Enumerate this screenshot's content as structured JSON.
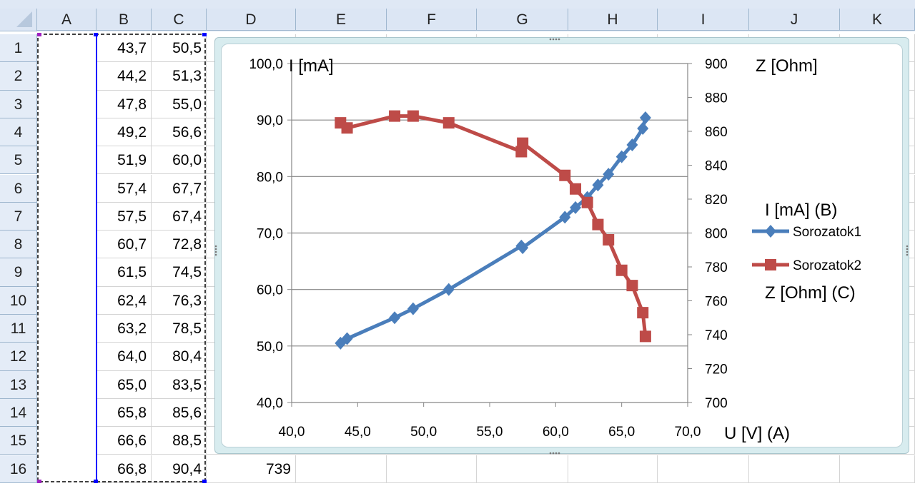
{
  "columns": [
    "A",
    "B",
    "C",
    "D",
    "E",
    "F",
    "G",
    "H",
    "I",
    "J",
    "K"
  ],
  "rows": [
    {
      "n": "1",
      "A": "43,7",
      "B": "50,5",
      "C": "865"
    },
    {
      "n": "2",
      "A": "44,2",
      "B": "51,3",
      "C": "862"
    },
    {
      "n": "3",
      "A": "47,8",
      "B": "55,0",
      "C": "869"
    },
    {
      "n": "4",
      "A": "49,2",
      "B": "56,6",
      "C": "869"
    },
    {
      "n": "5",
      "A": "51,9",
      "B": "60,0",
      "C": "865"
    },
    {
      "n": "6",
      "A": "57,4",
      "B": "67,7",
      "C": "848"
    },
    {
      "n": "7",
      "A": "57,5",
      "B": "67,4",
      "C": "853"
    },
    {
      "n": "8",
      "A": "60,7",
      "B": "72,8",
      "C": "834"
    },
    {
      "n": "9",
      "A": "61,5",
      "B": "74,5",
      "C": "826"
    },
    {
      "n": "10",
      "A": "62,4",
      "B": "76,3",
      "C": "818"
    },
    {
      "n": "11",
      "A": "63,2",
      "B": "78,5",
      "C": "805"
    },
    {
      "n": "12",
      "A": "64,0",
      "B": "80,4",
      "C": "796"
    },
    {
      "n": "13",
      "A": "65,0",
      "B": "83,5",
      "C": "778"
    },
    {
      "n": "14",
      "A": "65,8",
      "B": "85,6",
      "C": "769"
    },
    {
      "n": "15",
      "A": "66,6",
      "B": "88,5",
      "C": "753"
    },
    {
      "n": "16",
      "A": "66,8",
      "B": "90,4",
      "C": "739"
    }
  ],
  "chart_data": {
    "type": "line",
    "xlabel": "U [V] (A)",
    "ylabel": "I [mA]",
    "y2label": "Z [Ohm]",
    "xlim": [
      40,
      70
    ],
    "ylim": [
      40,
      100
    ],
    "y2lim": [
      700,
      900
    ],
    "xticks": [
      "40,0",
      "45,0",
      "50,0",
      "55,0",
      "60,0",
      "65,0",
      "70,0"
    ],
    "yticks": [
      "40,0",
      "50,0",
      "60,0",
      "70,0",
      "80,0",
      "90,0",
      "100,0"
    ],
    "y2ticks": [
      "700",
      "720",
      "740",
      "760",
      "780",
      "800",
      "820",
      "840",
      "860",
      "880",
      "900"
    ],
    "grid": "horizontal",
    "legend": {
      "position": "right",
      "title_top": "I [mA] (B)",
      "title_bottom": "Z [Ohm] (C)"
    },
    "x": [
      43.7,
      44.2,
      47.8,
      49.2,
      51.9,
      57.4,
      57.5,
      60.7,
      61.5,
      62.4,
      63.2,
      64.0,
      65.0,
      65.8,
      66.6,
      66.8
    ],
    "series": [
      {
        "name": "Sorozatok1",
        "axis": "left",
        "marker": "diamond",
        "color": "#4a7ebb",
        "values": [
          50.5,
          51.3,
          55.0,
          56.6,
          60.0,
          67.7,
          67.4,
          72.8,
          74.5,
          76.3,
          78.5,
          80.4,
          83.5,
          85.6,
          88.5,
          90.4
        ]
      },
      {
        "name": "Sorozatok2",
        "axis": "right",
        "marker": "square",
        "color": "#be4b48",
        "values": [
          865,
          862,
          869,
          869,
          865,
          848,
          853,
          834,
          826,
          818,
          805,
          796,
          778,
          769,
          753,
          739
        ]
      }
    ]
  }
}
